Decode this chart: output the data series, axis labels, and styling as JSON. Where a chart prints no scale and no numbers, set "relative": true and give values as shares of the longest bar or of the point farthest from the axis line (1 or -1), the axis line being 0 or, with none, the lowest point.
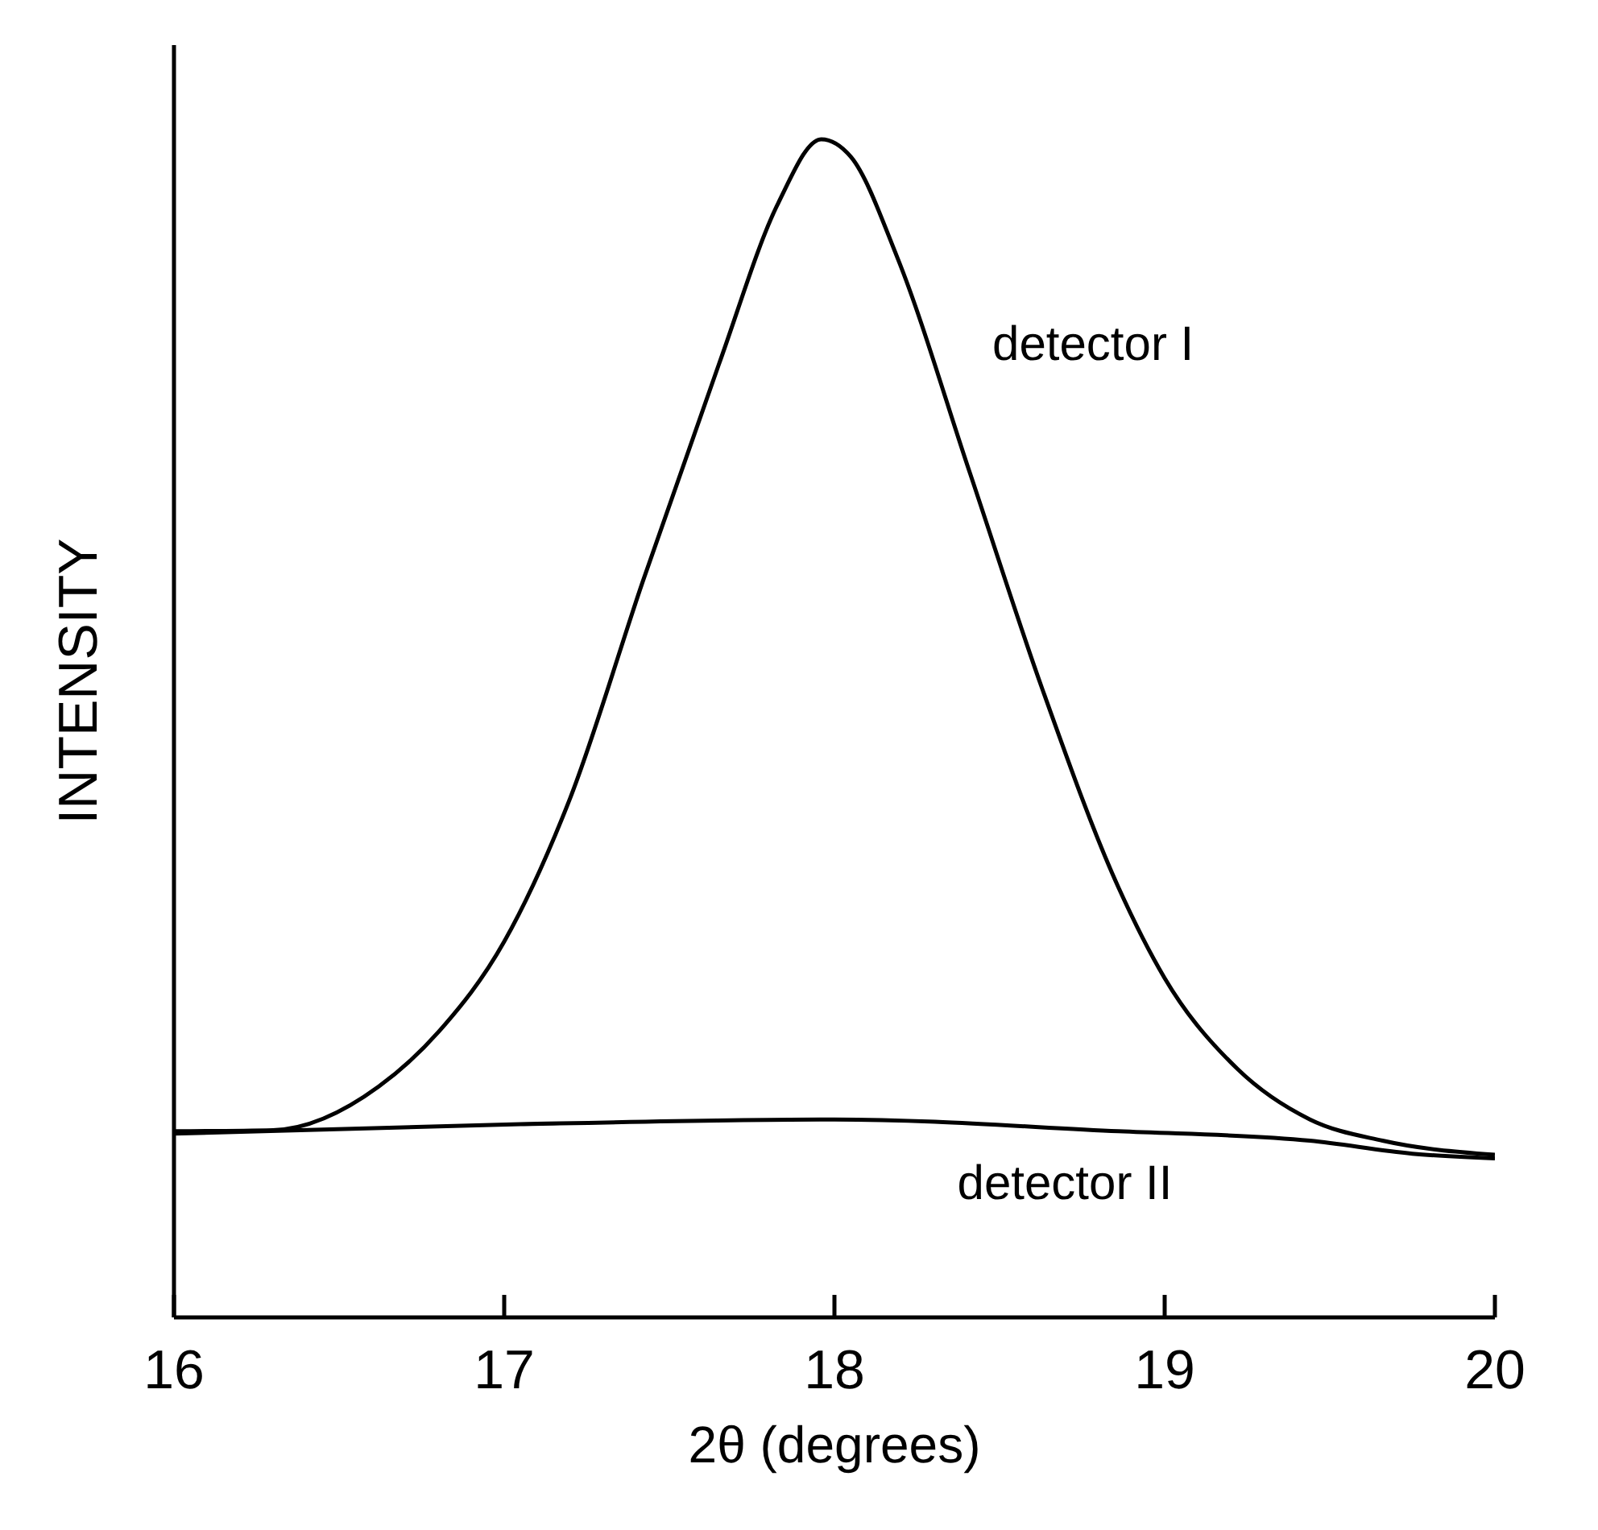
{
  "chart_data": {
    "type": "line",
    "relative": true,
    "xlabel": "2θ (degrees)",
    "ylabel": "INTENSITY",
    "xlim": [
      16,
      20
    ],
    "xticks": [
      16,
      17,
      18,
      19,
      20
    ],
    "grid": false,
    "legend": false,
    "marker": "none",
    "line_style": "solid",
    "series": [
      {
        "name": "detector I",
        "color": "#000000",
        "x": [
          16.0,
          16.3,
          16.62,
          16.8,
          17.0,
          17.2,
          17.42,
          17.65,
          17.83,
          17.96,
          18.05,
          18.19,
          18.41,
          18.63,
          18.86,
          19.0,
          19.22,
          19.44,
          19.66,
          20.0
        ],
        "values": [
          0.158,
          0.159,
          0.196,
          0.242,
          0.319,
          0.441,
          0.625,
          0.809,
          0.946,
          1.0,
          0.985,
          0.9,
          0.717,
          0.533,
          0.365,
          0.288,
          0.211,
          0.168,
          0.15,
          0.138
        ]
      },
      {
        "name": "detector II",
        "color": "#000000",
        "x": [
          16.0,
          17.05,
          18.0,
          18.86,
          19.44,
          19.75,
          20.0
        ],
        "values": [
          0.156,
          0.164,
          0.168,
          0.158,
          0.15,
          0.139,
          0.135
        ]
      }
    ]
  }
}
